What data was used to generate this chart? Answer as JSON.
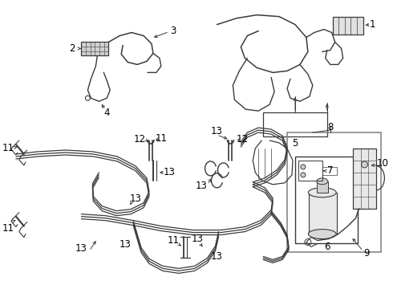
{
  "bg_color": "#ffffff",
  "lc": "#3a3a3a",
  "fig_width": 4.9,
  "fig_height": 3.6,
  "dpi": 100,
  "xlim": [
    0,
    490
  ],
  "ylim": [
    0,
    360
  ]
}
